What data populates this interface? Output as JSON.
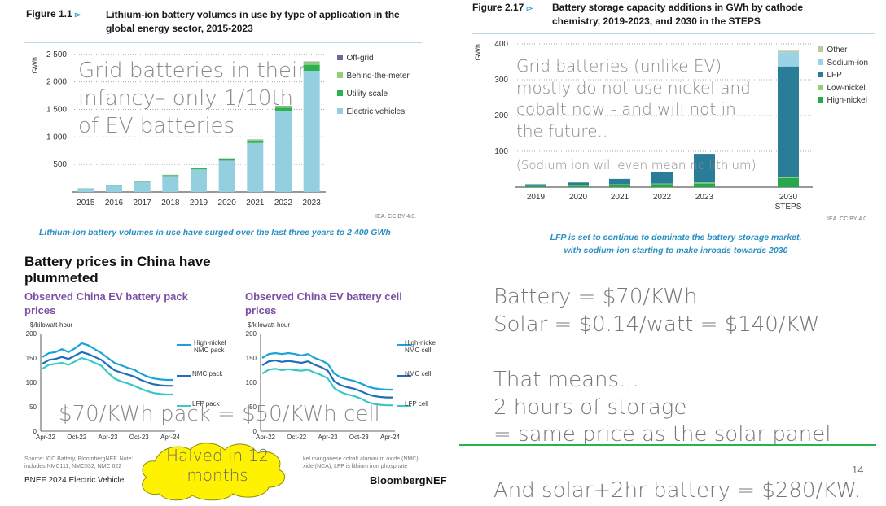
{
  "fig1": {
    "label": "Figure 1.1",
    "arrow": "▻",
    "title_line1": "Lithium-ion battery volumes in use by type of application in the",
    "title_line2": "global energy sector, 2015-2023",
    "yunit": "GWh",
    "legend": [
      "Off-grid",
      "Behind-the-meter",
      "Utility scale",
      "Electric vehicles"
    ],
    "caption": "Lithium-ion battery volumes in use have surged over the last three years to 2 400 GWh",
    "credit": "IEA. CC BY 4.0.",
    "overlay": [
      "Grid batteries in their",
      "infancy– only 1/10th",
      "of EV batteries"
    ]
  },
  "fig2": {
    "label": "Figure 2.17",
    "arrow": "▻",
    "title_line1": "Battery storage capacity additions in GWh by cathode",
    "title_line2": "chemistry, 2019-2023, and 2030 in the STEPS",
    "yunit": "GWh",
    "legend": [
      "Other",
      "Sodium-ion",
      "LFP",
      "Low-nickel",
      "High-nickel"
    ],
    "caption_line1": "LFP is set to continue to dominate the battery storage market,",
    "caption_line2": "with sodium-ion starting to make inroads towards 2030",
    "credit": "IEA. CC BY 4.0.",
    "overlay": [
      "Grid batteries (unlike EV)",
      "mostly do not use nickel and",
      "cobalt now - and will not in",
      "the future.."
    ],
    "overlay_note": "(Sodium ion will even mean no lithium)"
  },
  "bnef": {
    "heading_line1": "Battery prices in China have",
    "heading_line2": "plummeted",
    "left_title_line1": "Observed China EV battery pack",
    "left_title_line2": "prices",
    "right_title_line1": "Observed China EV battery cell",
    "right_title_line2": "prices",
    "yunit": "$/kilowatt-hour",
    "left_legend": [
      "High-nickel",
      "NMC pack",
      "NMC pack",
      "LFP pack"
    ],
    "right_legend": [
      "High-nickel",
      "NMC cell",
      "NMC cell",
      "LFP cell"
    ],
    "source_left_1": "Source: ICC Battery, BloombergNEF. Note:",
    "source_left_2": "includes NMC111, NMC532, NMC 622",
    "source_right_1": "kel manganese cobalt aluminum oxide (NMC)",
    "source_right_2": "xide (NCA); LFP is lithium iron phosphate",
    "footer_left": "BNEF 2024 Electric Vehicle",
    "brand": "BloombergNEF",
    "overlay": "$70/KWh pack = $50/KWh cell",
    "cloud_line1": "Halved in 12",
    "cloud_line2": "months"
  },
  "notes": {
    "line1": "Battery = $70/KWh",
    "line2": "Solar = $0.14/watt = $140/KW",
    "line3": "That means...",
    "line4": "2 hours of storage",
    "line5": "= same price as the solar panel",
    "line6": "And solar+2hr battery = $280/KW.",
    "page_number": "14"
  },
  "colors": {
    "ev": "#94cfe0",
    "utility": "#2bb24c",
    "btm": "#8fd07a",
    "offgrid": "#6b6b9a",
    "other": "#bcc9a0",
    "sodium": "#9ad3e6",
    "lfp": "#2a7d99",
    "lownickel": "#8ed36f",
    "highnickel": "#23a84e",
    "line_high": "#1aa3d6",
    "line_nmc": "#1f6fb8",
    "line_lfp": "#36c9c4",
    "cloud": "#fff200"
  },
  "chart_data": [
    {
      "type": "bar",
      "title": "Lithium-ion battery volumes in use by type of application in the global energy sector, 2015-2023",
      "ylabel": "GWh",
      "ylim": [
        0,
        2600
      ],
      "yticks": [
        500,
        1000,
        1500,
        2000,
        2500
      ],
      "ytick_labels": [
        "500",
        "1 000",
        "1 500",
        "2 000",
        "2 500"
      ],
      "categories": [
        "2015",
        "2016",
        "2017",
        "2018",
        "2019",
        "2020",
        "2021",
        "2022",
        "2023"
      ],
      "series": [
        {
          "name": "Electric vehicles",
          "values": [
            65,
            115,
            180,
            290,
            410,
            570,
            890,
            1470,
            2200
          ]
        },
        {
          "name": "Utility scale",
          "values": [
            2,
            4,
            6,
            12,
            18,
            25,
            40,
            60,
            110
          ]
        },
        {
          "name": "Behind-the-meter",
          "values": [
            2,
            3,
            5,
            8,
            10,
            14,
            20,
            30,
            50
          ]
        },
        {
          "name": "Off-grid",
          "values": [
            0,
            1,
            1,
            2,
            2,
            3,
            4,
            5,
            8
          ]
        }
      ]
    },
    {
      "type": "bar",
      "title": "Battery storage capacity additions in GWh by cathode chemistry, 2019-2023, and 2030 in the STEPS",
      "ylabel": "GWh",
      "ylim": [
        0,
        400
      ],
      "yticks": [
        100,
        200,
        300,
        400
      ],
      "ytick_labels": [
        "100",
        "200",
        "300",
        "400"
      ],
      "categories": [
        "2019",
        "2020",
        "2021",
        "2022",
        "2023",
        "2030 STEPS"
      ],
      "series": [
        {
          "name": "High-nickel",
          "values": [
            3,
            4,
            6,
            8,
            10,
            25
          ]
        },
        {
          "name": "Low-nickel",
          "values": [
            0,
            1,
            2,
            2,
            3,
            2
          ]
        },
        {
          "name": "LFP",
          "values": [
            5,
            8,
            15,
            32,
            80,
            310
          ]
        },
        {
          "name": "Sodium-ion",
          "values": [
            0,
            0,
            0,
            0,
            0,
            40
          ]
        },
        {
          "name": "Other",
          "values": [
            0,
            0,
            0,
            0,
            0,
            4
          ]
        }
      ]
    },
    {
      "type": "line",
      "title": "Observed China EV battery pack prices",
      "ylabel": "$/kilowatt-hour",
      "ylim": [
        0,
        200
      ],
      "yticks": [
        0,
        50,
        100,
        150,
        200
      ],
      "xticks": [
        "Apr-22",
        "Oct-22",
        "Apr-23",
        "Oct-23",
        "Apr-24"
      ],
      "series": [
        {
          "name": "High-nickel NMC pack",
          "values": [
            152,
            160,
            162,
            168,
            162,
            170,
            180,
            176,
            168,
            160,
            150,
            140,
            135,
            130,
            126,
            118,
            112,
            108,
            106,
            105,
            105
          ]
        },
        {
          "name": "NMC pack",
          "values": [
            138,
            146,
            148,
            152,
            148,
            155,
            162,
            158,
            152,
            146,
            135,
            125,
            120,
            116,
            112,
            105,
            100,
            96,
            94,
            93,
            93
          ]
        },
        {
          "name": "LFP pack",
          "values": [
            128,
            136,
            138,
            140,
            136,
            143,
            150,
            146,
            140,
            134,
            120,
            108,
            102,
            98,
            93,
            87,
            82,
            78,
            76,
            75,
            75
          ]
        }
      ]
    },
    {
      "type": "line",
      "title": "Observed China EV battery cell prices",
      "ylabel": "$/kilowatt-hour",
      "ylim": [
        0,
        200
      ],
      "yticks": [
        0,
        50,
        100,
        150,
        200
      ],
      "xticks": [
        "Apr-22",
        "Oct-22",
        "Apr-23",
        "Oct-23",
        "Apr-24"
      ],
      "series": [
        {
          "name": "High-nickel NMC cell",
          "values": [
            150,
            158,
            160,
            158,
            160,
            158,
            155,
            158,
            150,
            145,
            138,
            118,
            110,
            106,
            103,
            98,
            92,
            88,
            86,
            85,
            85
          ]
        },
        {
          "name": "NMC cell",
          "values": [
            135,
            143,
            145,
            142,
            144,
            142,
            140,
            143,
            136,
            131,
            124,
            102,
            94,
            90,
            87,
            82,
            76,
            72,
            70,
            69,
            69
          ]
        },
        {
          "name": "LFP cell",
          "values": [
            118,
            126,
            128,
            125,
            127,
            125,
            124,
            126,
            120,
            115,
            108,
            88,
            80,
            75,
            72,
            67,
            60,
            56,
            54,
            53,
            53
          ]
        }
      ]
    }
  ]
}
